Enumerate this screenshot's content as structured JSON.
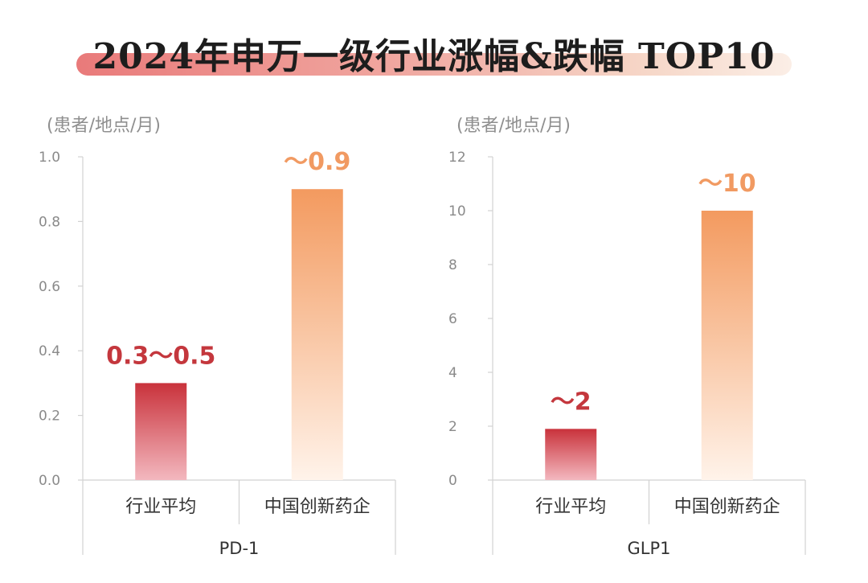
{
  "title": "2024年申万一级行业涨幅&跌幅 TOP10",
  "colors": {
    "industry_avg": [
      "#c9323b",
      "#f3b8bf"
    ],
    "innovator": [
      "#f39a5f",
      "#fff3ea"
    ],
    "label_avg": "#c4373d",
    "label_innovator": "#f19a62"
  },
  "chart_data": [
    {
      "type": "bar",
      "unit_label": "(患者/地点/月)",
      "group_label": "PD-1",
      "categories": [
        "行业平均",
        "中国创新药企"
      ],
      "values": [
        0.3,
        0.9
      ],
      "data_labels": [
        "0.3～0.5",
        "～0.9"
      ],
      "yticks": [
        "0.0",
        "0.2",
        "0.4",
        "0.6",
        "0.8",
        "1.0"
      ],
      "ylim": [
        0,
        1.0
      ],
      "grid": false
    },
    {
      "type": "bar",
      "unit_label": "(患者/地点/月)",
      "group_label": "GLP1",
      "categories": [
        "行业平均",
        "中国创新药企"
      ],
      "values": [
        1.9,
        10
      ],
      "data_labels": [
        "～2",
        "～10"
      ],
      "yticks": [
        "0",
        "2",
        "4",
        "6",
        "8",
        "10",
        "12"
      ],
      "ylim": [
        0,
        12
      ],
      "grid": false
    }
  ]
}
